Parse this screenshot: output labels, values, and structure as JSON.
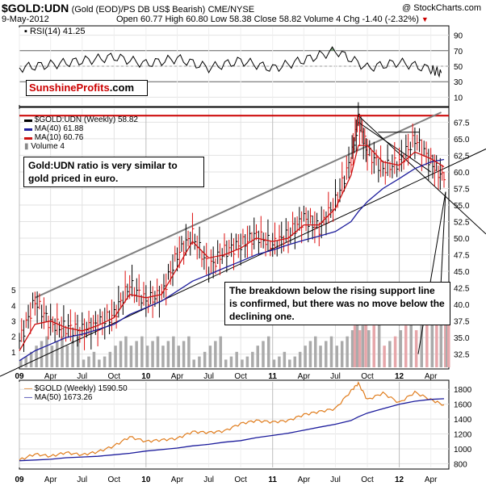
{
  "header": {
    "symbol": "$GOLD:UDN",
    "description": "(Gold (EOD)/PS DB US$ Bearish)",
    "exchange": "CME/NYSE",
    "watermark": "@ StockCharts.com",
    "date": "9-May-2012",
    "ohlc": "Open 60.77  High 60.80  Low 58.38  Close 58.82  Volume 4  Chg -1.40 (-2.32%)",
    "chg_marker": "▼"
  },
  "logo": {
    "part1": "Sunshine",
    "part2": "Profits",
    "part3": ".com"
  },
  "annotations": {
    "left_note": "Gold:UDN ratio is very similar to gold priced in euro.",
    "right_note": "The breakdown below the rising support line is confirmed, but there was no move below the declining one."
  },
  "colors": {
    "price_bar": "#000000",
    "ma40": "#1c1c9c",
    "ma10": "#cc1111",
    "volume": "#aaaaaa",
    "volume_down": "#e6a6aa",
    "resistance": "#cc0000",
    "gold_line": "#e07c1c",
    "rsi_fill": "#5f8f5f"
  },
  "chart_data": [
    {
      "type": "line",
      "panel": "rsi",
      "title": "RSI(14) 41.25",
      "yticks": [
        10,
        30,
        50,
        70,
        90
      ],
      "ylim": [
        0,
        100
      ],
      "reference_lines": [
        30,
        70
      ],
      "last_value": 41.25,
      "x": [
        "2009-01",
        "2009-04",
        "2009-07",
        "2009-10",
        "2010-01",
        "2010-04",
        "2010-07",
        "2010-10",
        "2011-01",
        "2011-04",
        "2011-07",
        "2011-10",
        "2012-01",
        "2012-04",
        "2012-05"
      ],
      "values": [
        48,
        52,
        57,
        62,
        53,
        60,
        48,
        57,
        47,
        58,
        70,
        48,
        55,
        46,
        41.25
      ]
    },
    {
      "type": "bar",
      "panel": "main",
      "series_label": "$GOLD:UDN (Weekly) 58.82",
      "ma40_label": "MA(40) 61.88",
      "ma10_label": "MA(10) 60.76",
      "volume_label": "Volume 4",
      "grid": true,
      "yticks": [
        32.5,
        35.0,
        37.5,
        40.0,
        42.5,
        45.0,
        47.5,
        50.0,
        52.5,
        55.0,
        57.5,
        60.0,
        62.5,
        65.0,
        67.5
      ],
      "ylim": [
        30.5,
        69.5
      ],
      "volume_ticks": [
        1,
        2,
        3,
        4,
        5
      ],
      "volume_ylim": [
        0,
        6
      ],
      "xticks": [
        "09",
        "Apr",
        "Jul",
        "Oct",
        "10",
        "Apr",
        "Jul",
        "Oct",
        "11",
        "Apr",
        "Jul",
        "Oct",
        "12",
        "Apr"
      ],
      "x": [
        "2009-01-01",
        "2009-02-15",
        "2009-04-01",
        "2009-05-15",
        "2009-07-01",
        "2009-08-15",
        "2009-10-01",
        "2009-11-15",
        "2010-01-01",
        "2010-02-15",
        "2010-04-01",
        "2010-05-15",
        "2010-07-01",
        "2010-08-15",
        "2010-10-01",
        "2010-11-15",
        "2011-01-01",
        "2011-02-15",
        "2011-04-01",
        "2011-05-15",
        "2011-07-01",
        "2011-08-15",
        "2011-09-05",
        "2011-10-01",
        "2011-11-15",
        "2012-01-01",
        "2012-02-15",
        "2012-04-01",
        "2012-05-09"
      ],
      "close": [
        34.5,
        40.5,
        37.0,
        36.5,
        36.0,
        37.0,
        38.5,
        43.0,
        40.5,
        41.5,
        47.5,
        50.5,
        45.5,
        48.0,
        49.0,
        50.5,
        49.0,
        50.5,
        53.0,
        51.5,
        55.5,
        62.0,
        68.0,
        63.0,
        60.5,
        61.5,
        65.0,
        61.5,
        58.82
      ],
      "ma40": [
        31.5,
        33.0,
        34.0,
        35.0,
        35.5,
        36.2,
        37.0,
        38.5,
        39.5,
        40.5,
        42.0,
        43.5,
        44.5,
        45.5,
        46.5,
        47.5,
        48.2,
        49.0,
        49.7,
        50.3,
        51.0,
        52.5,
        54.0,
        55.5,
        57.5,
        59.0,
        60.5,
        61.5,
        61.88
      ],
      "ma10": [
        33.0,
        37.0,
        37.5,
        36.5,
        36.0,
        36.8,
        38.0,
        41.5,
        41.0,
        41.5,
        45.5,
        49.5,
        47.0,
        47.5,
        48.5,
        50.0,
        49.5,
        50.0,
        52.0,
        52.0,
        54.5,
        59.5,
        64.0,
        64.0,
        61.5,
        61.0,
        63.0,
        62.0,
        60.76
      ],
      "volume": [
        1,
        2,
        2,
        2,
        1,
        1,
        2,
        2,
        2,
        2,
        2,
        1,
        2,
        1,
        1,
        2,
        1,
        1,
        2,
        2,
        2,
        3,
        3,
        3,
        2,
        3,
        3,
        4,
        4
      ],
      "resistance_level": 68.5,
      "trend_lines": [
        {
          "name": "rising support",
          "points": [
            [
              "2009-01-01",
              30.5
            ],
            [
              "2012-05-09",
              60.5
            ]
          ]
        },
        {
          "name": "rising resistance",
          "points": [
            [
              "2009-02-15",
              41.0
            ],
            [
              "2012-05-01",
              69.0
            ]
          ]
        },
        {
          "name": "declining",
          "points": [
            [
              "2011-09-05",
              68.5
            ],
            [
              "2012-05-09",
              56.5
            ]
          ]
        }
      ]
    },
    {
      "type": "line",
      "panel": "gold",
      "series": [
        {
          "name": "$GOLD (Weekly) 1590.50",
          "values": [
            850,
            930,
            900,
            950,
            920,
            960,
            1040,
            1160,
            1100,
            1120,
            1140,
            1230,
            1220,
            1240,
            1340,
            1380,
            1360,
            1380,
            1460,
            1500,
            1540,
            1780,
            1880,
            1660,
            1750,
            1620,
            1760,
            1660,
            1590.5
          ]
        },
        {
          "name": "MA(50) 1673.26",
          "values": [
            840,
            850,
            860,
            880,
            890,
            900,
            920,
            940,
            970,
            990,
            1010,
            1040,
            1060,
            1090,
            1110,
            1150,
            1180,
            1210,
            1250,
            1290,
            1330,
            1380,
            1430,
            1480,
            1540,
            1600,
            1640,
            1665,
            1673.26
          ]
        }
      ],
      "x": [
        "2009-01-01",
        "2009-02-15",
        "2009-04-01",
        "2009-05-15",
        "2009-07-01",
        "2009-08-15",
        "2009-10-01",
        "2009-11-15",
        "2010-01-01",
        "2010-02-15",
        "2010-04-01",
        "2010-05-15",
        "2010-07-01",
        "2010-08-15",
        "2010-10-01",
        "2010-11-15",
        "2011-01-01",
        "2011-02-15",
        "2011-04-01",
        "2011-05-15",
        "2011-07-01",
        "2011-08-15",
        "2011-09-05",
        "2011-10-01",
        "2011-11-15",
        "2012-01-01",
        "2012-02-15",
        "2012-04-01",
        "2012-05-09"
      ],
      "yticks": [
        800,
        1000,
        1200,
        1400,
        1600,
        1800
      ],
      "ylim": [
        750,
        1900
      ],
      "xticks": [
        "09",
        "Apr",
        "Jul",
        "Oct",
        "10",
        "Apr",
        "Jul",
        "Oct",
        "11",
        "Apr",
        "Jul",
        "Oct",
        "12",
        "Apr"
      ]
    }
  ]
}
